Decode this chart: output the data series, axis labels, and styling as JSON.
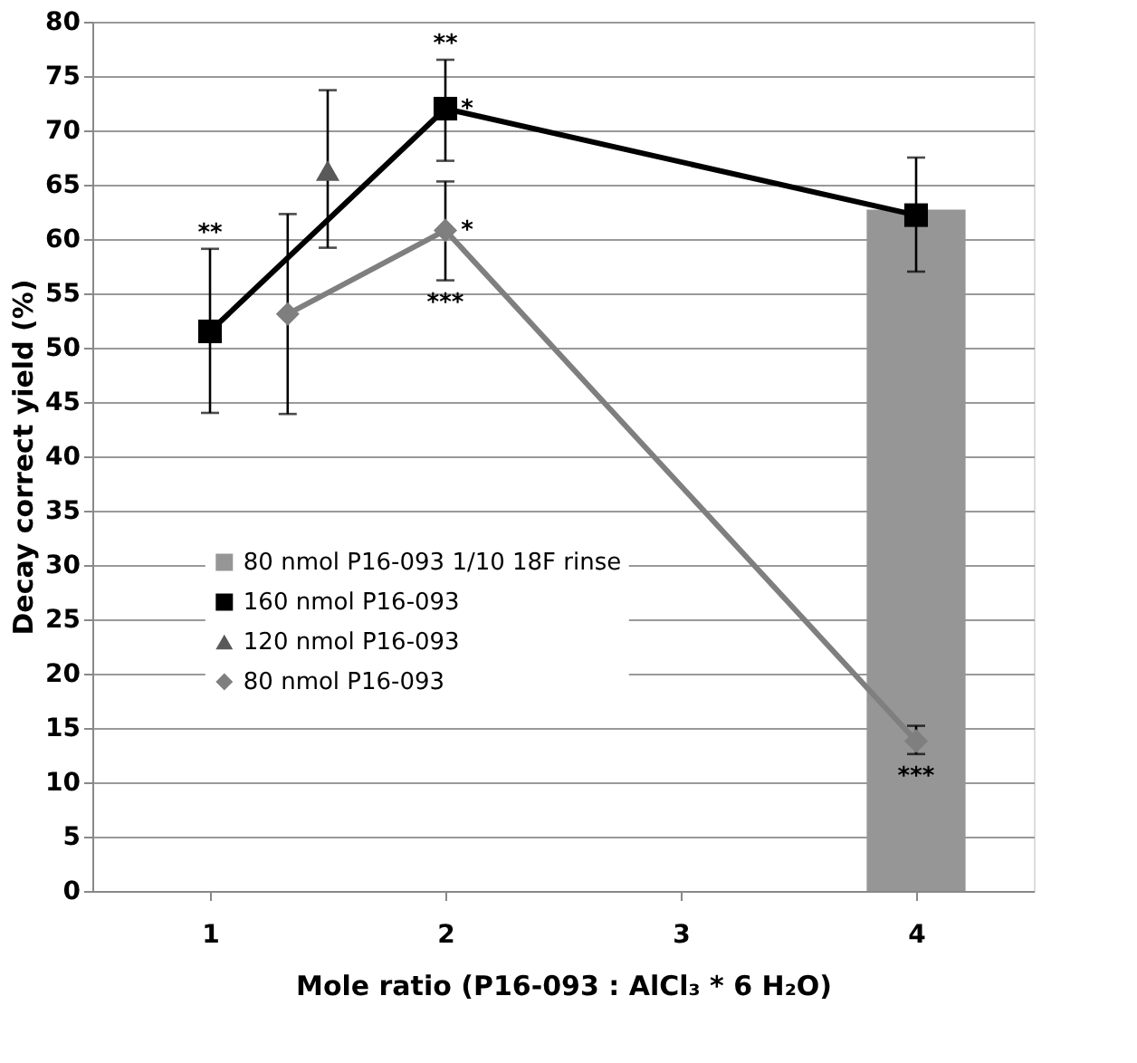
{
  "chart_data": {
    "type": "line",
    "xlabel": "Mole ratio (P16-093 : AlCl₃ * 6 H₂O)",
    "ylabel": "Decay correct yield (%)",
    "xlim": [
      0.5,
      4.5
    ],
    "xticks": [
      1,
      2,
      3,
      4
    ],
    "ylim": [
      0,
      80
    ],
    "yticks": [
      0,
      5,
      10,
      15,
      20,
      25,
      30,
      35,
      40,
      45,
      50,
      55,
      60,
      65,
      70,
      75,
      80
    ],
    "grid": "y",
    "legend": "bottom left",
    "series": [
      {
        "name": "80 nmol P16-093 1/10 18F rinse",
        "type": "bar",
        "color": "#969696",
        "x": [
          4
        ],
        "values": [
          62.7
        ]
      },
      {
        "name": "160 nmol P16-093",
        "marker": "square",
        "color": "#000000",
        "x": [
          1,
          2,
          4
        ],
        "values": [
          51.5,
          72.0,
          62.2
        ],
        "errors": [
          [
            44.0,
            59.1
          ],
          [
            67.2,
            76.5
          ],
          [
            57.0,
            67.5
          ]
        ]
      },
      {
        "name": "120 nmol P16-093",
        "marker": "triangle",
        "color": "#595959",
        "x": [
          1.5
        ],
        "values": [
          66.3
        ],
        "errors": [
          [
            59.2,
            73.7
          ]
        ]
      },
      {
        "name": "80 nmol P16-093",
        "marker": "diamond",
        "color": "#7f7f7f",
        "x": [
          1.33,
          2,
          4
        ],
        "values": [
          53.1,
          60.8,
          13.8
        ],
        "errors": [
          [
            43.9,
            62.3
          ],
          [
            56.2,
            65.3
          ],
          [
            12.6,
            15.2
          ]
        ]
      }
    ],
    "annotations": [
      {
        "text": "**",
        "x": 1,
        "y": 59.1
      },
      {
        "text": "**",
        "x": 2,
        "y": 76.5
      },
      {
        "text": "*",
        "x": 2,
        "y": 72.0
      },
      {
        "text": "*",
        "x": 2,
        "y": 60.8
      },
      {
        "text": "***",
        "x": 2,
        "y": 56.2
      },
      {
        "text": "***",
        "x": 4,
        "y": 12.6
      }
    ]
  }
}
